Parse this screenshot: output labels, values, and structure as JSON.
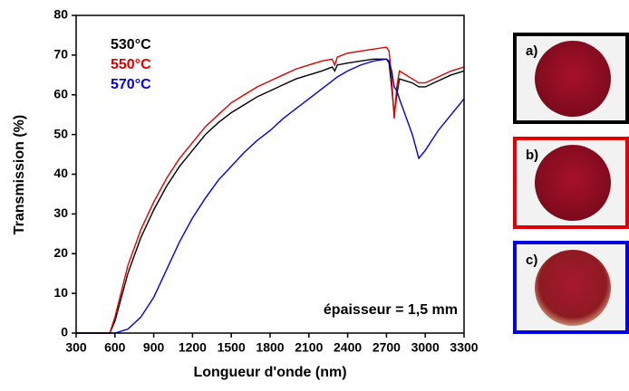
{
  "chart_data": {
    "type": "line",
    "xlabel": "Longueur d'onde (nm)",
    "ylabel": "Transmission (%)",
    "annotation": "épaisseur = 1,5 mm",
    "xlim": [
      300,
      3300
    ],
    "ylim": [
      0,
      80
    ],
    "xticks": [
      300,
      600,
      900,
      1200,
      1500,
      1800,
      2100,
      2400,
      2700,
      3000,
      3300
    ],
    "yticks": [
      0,
      10,
      20,
      30,
      40,
      50,
      60,
      70,
      80
    ],
    "x": [
      300,
      560,
      600,
      700,
      800,
      900,
      1000,
      1100,
      1200,
      1300,
      1400,
      1500,
      1600,
      1700,
      1800,
      1900,
      2000,
      2100,
      2200,
      2280,
      2300,
      2320,
      2400,
      2500,
      2600,
      2700,
      2720,
      2740,
      2760,
      2780,
      2800,
      2900,
      2950,
      3000,
      3100,
      3200,
      3300
    ],
    "series": [
      {
        "name": "530°C",
        "color": "#000000",
        "values": [
          0,
          0,
          3,
          15,
          24,
          31,
          37,
          42,
          46,
          50,
          53,
          55.5,
          57.5,
          59.5,
          61,
          62.5,
          64,
          65,
          66,
          67,
          66,
          67.5,
          68,
          68.5,
          69,
          69,
          68,
          62,
          55,
          60,
          64,
          63,
          62,
          62,
          63.5,
          65,
          66
        ]
      },
      {
        "name": "550°C",
        "color": "#e00000",
        "values": [
          0,
          0,
          4,
          17,
          26,
          33,
          39,
          44,
          48,
          52,
          55,
          58,
          60,
          62,
          63.5,
          65,
          66.5,
          67.5,
          68.5,
          69,
          67.5,
          69.5,
          70.5,
          71,
          71.5,
          72,
          71,
          64,
          54,
          62,
          66,
          64,
          63,
          63,
          64.5,
          66,
          67
        ]
      },
      {
        "name": "570°C",
        "color": "#0000e0",
        "values": [
          0,
          0,
          0,
          1,
          4,
          9,
          16,
          23,
          29,
          34,
          38.5,
          42,
          45.5,
          48.5,
          51,
          54,
          56.5,
          59,
          61.5,
          63.5,
          64,
          64.5,
          66,
          67.5,
          68.5,
          69,
          68.5,
          66,
          62,
          61,
          59,
          50,
          44,
          46,
          51,
          55,
          59
        ]
      }
    ]
  },
  "panels": [
    {
      "label": "a)"
    },
    {
      "label": "b)"
    },
    {
      "label": "c)"
    }
  ]
}
